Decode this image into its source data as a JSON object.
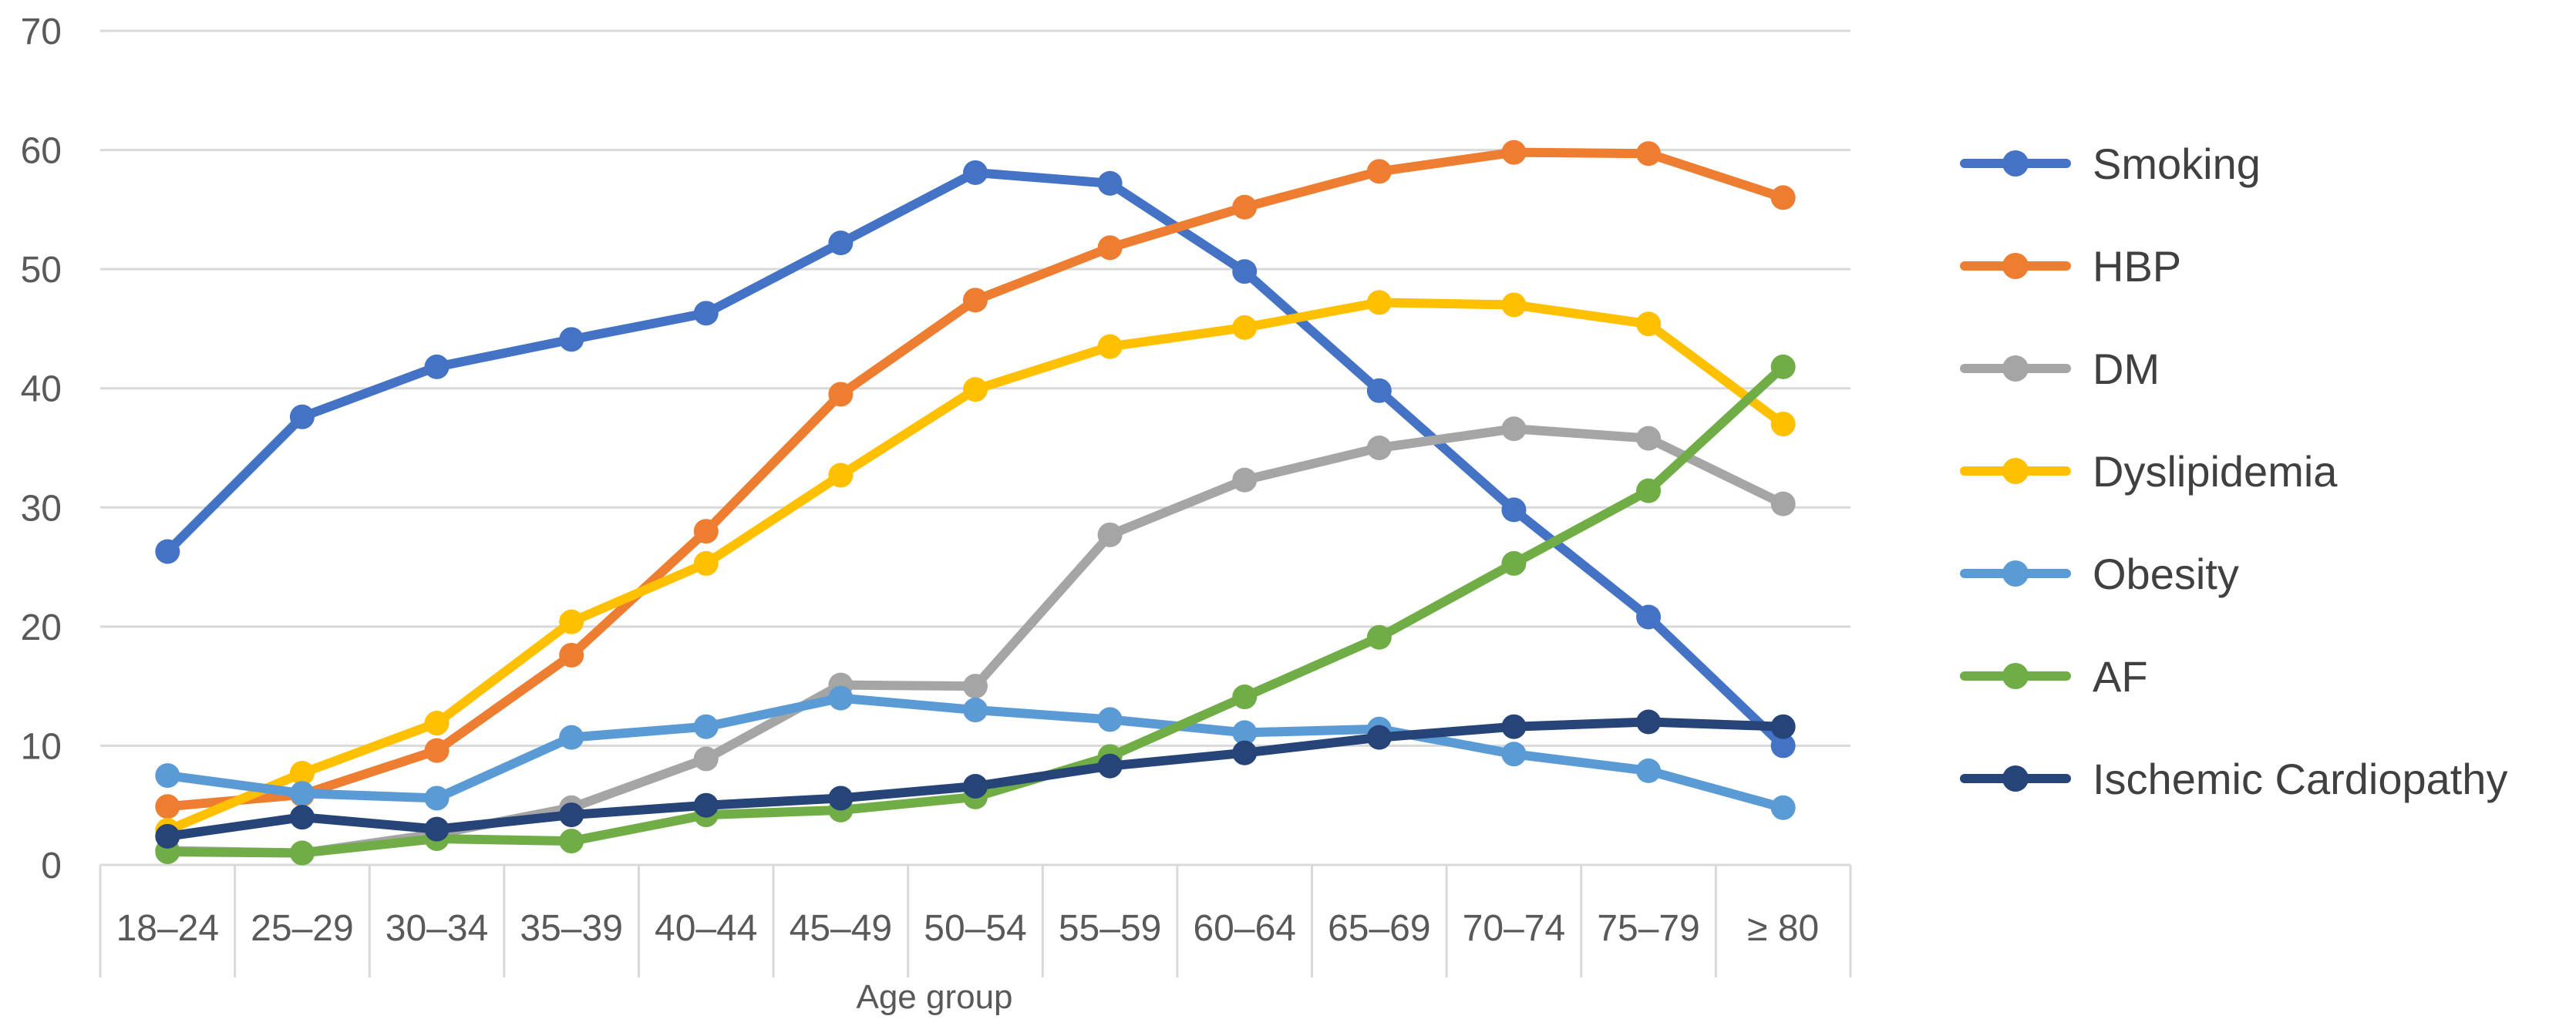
{
  "chart_data": {
    "type": "line",
    "title": "",
    "xlabel": "Age group",
    "ylabel": "",
    "ylim": [
      0,
      70
    ],
    "yticks": [
      0,
      10,
      20,
      30,
      40,
      50,
      60,
      70
    ],
    "grid": "horizontal",
    "legend_position": "right",
    "categories": [
      "18–24",
      "25–29",
      "30–34",
      "35–39",
      "40–44",
      "45–49",
      "50–54",
      "55–59",
      "60–64",
      "65–69",
      "70–74",
      "75–79",
      "≥ 80"
    ],
    "series": [
      {
        "name": "Smoking",
        "color": "#4472C4",
        "values": [
          26.3,
          37.6,
          41.8,
          44.1,
          46.3,
          52.2,
          58.1,
          57.2,
          49.8,
          39.8,
          29.8,
          20.8,
          10.0
        ]
      },
      {
        "name": "HBP",
        "color": "#ED7D31",
        "values": [
          4.9,
          5.9,
          9.6,
          17.6,
          28.0,
          39.5,
          47.4,
          51.8,
          55.2,
          58.2,
          59.8,
          59.7,
          56.0
        ]
      },
      {
        "name": "DM",
        "color": "#A5A5A5",
        "values": [
          1.2,
          1.0,
          2.6,
          4.8,
          8.9,
          15.1,
          15.0,
          27.7,
          32.3,
          35.0,
          36.6,
          35.8,
          30.3
        ]
      },
      {
        "name": "Dyslipidemia",
        "color": "#FFC000",
        "values": [
          2.9,
          7.7,
          11.9,
          20.4,
          25.3,
          32.7,
          39.9,
          43.5,
          45.1,
          47.2,
          47.0,
          45.4,
          37.0
        ]
      },
      {
        "name": "Obesity",
        "color": "#5B9BD5",
        "values": [
          7.5,
          6.0,
          5.6,
          10.7,
          11.6,
          14.0,
          13.0,
          12.2,
          11.1,
          11.4,
          9.3,
          7.9,
          4.8
        ]
      },
      {
        "name": "AF",
        "color": "#70AD47",
        "values": [
          1.1,
          1.0,
          2.2,
          2.0,
          4.2,
          4.6,
          5.7,
          9.1,
          14.1,
          19.1,
          25.3,
          31.4,
          41.8
        ]
      },
      {
        "name": "Ischemic Cardiopathy",
        "color": "#264478",
        "values": [
          2.4,
          4.0,
          3.0,
          4.2,
          5.0,
          5.6,
          6.6,
          8.3,
          9.4,
          10.7,
          11.6,
          12.0,
          11.6
        ]
      }
    ]
  }
}
